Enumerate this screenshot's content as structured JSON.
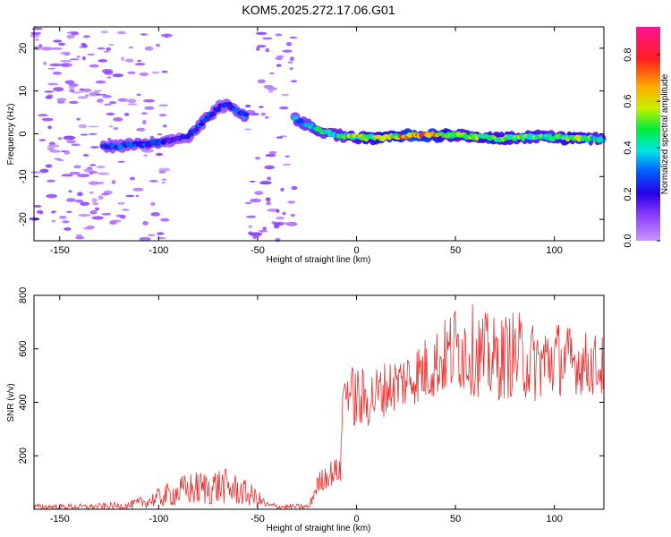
{
  "figure": {
    "title": "KOM5.2025.272.17.06.G01"
  },
  "chart_data": [
    {
      "type": "heatmap",
      "xlabel": "Height of straight line (km)",
      "ylabel": "Frequency (Hz)",
      "xlim": [
        -163,
        125
      ],
      "ylim": [
        -25,
        25
      ],
      "xticks": [
        -150,
        -100,
        -50,
        0,
        50,
        100
      ],
      "yticks": [
        -20,
        -10,
        0,
        10,
        20
      ],
      "colorbar": {
        "label": "Normalized spectral amplitude",
        "range": [
          0.0,
          0.92
        ],
        "ticks": [
          0.0,
          0.2,
          0.4,
          0.6,
          0.8
        ],
        "colormap": "rainbow-white"
      },
      "ridge": {
        "x": [
          -128,
          -120,
          -110,
          -100,
          -92,
          -85,
          -80,
          -75,
          -70,
          -65,
          -60,
          -55,
          -31,
          -25,
          -20,
          -10,
          0,
          10,
          20,
          30,
          40,
          50,
          60,
          70,
          80,
          90,
          100,
          110,
          120,
          125
        ],
        "freq": [
          -3,
          -2.8,
          -2.5,
          -2,
          -1.5,
          -0.5,
          1.5,
          4,
          6,
          7,
          5,
          4,
          3.5,
          2,
          1,
          -0.3,
          -0.8,
          -1,
          -0.6,
          -0.3,
          -0.4,
          -0.2,
          -0.7,
          -1.1,
          -1,
          -0.7,
          -0.8,
          -1.1,
          -1.2,
          -1.2
        ],
        "amplitude": [
          0.25,
          0.3,
          0.28,
          0.3,
          0.2,
          0.22,
          0.28,
          0.3,
          0.22,
          0.25,
          0.3,
          0.35,
          0.35,
          0.4,
          0.45,
          0.45,
          0.55,
          0.6,
          0.7,
          0.85,
          0.75,
          0.55,
          0.55,
          0.6,
          0.55,
          0.55,
          0.5,
          0.65,
          0.5,
          0.45
        ]
      },
      "noise_regions": [
        {
          "x": [
            -163,
            -125
          ],
          "density": "high"
        },
        {
          "x": [
            -125,
            -95
          ],
          "density": "medium"
        },
        {
          "x": [
            -55,
            -31
          ],
          "density": "medium"
        }
      ]
    },
    {
      "type": "line",
      "xlabel": "Height of straight line (km)",
      "ylabel": "SNR (v/v)",
      "xlim": [
        -163,
        125
      ],
      "ylim": [
        0,
        800
      ],
      "xticks": [
        -150,
        -100,
        -50,
        0,
        50,
        100
      ],
      "yticks": [
        200,
        400,
        600,
        800
      ],
      "series": [
        {
          "color": "#e83030",
          "envelope": {
            "x": [
              -163,
              -135,
              -115,
              -105,
              -95,
              -85,
              -75,
              -68,
              -60,
              -52,
              -45,
              -38,
              -24,
              -20,
              -15,
              -8,
              -7,
              -5,
              0,
              5,
              15,
              25,
              35,
              45,
              52,
              60,
              70,
              80,
              90,
              100,
              110,
              125
            ],
            "low": [
              0,
              0,
              0,
              5,
              10,
              15,
              15,
              20,
              15,
              10,
              0,
              0,
              0,
              50,
              80,
              100,
              380,
              380,
              280,
              300,
              350,
              380,
              400,
              430,
              440,
              420,
              400,
              420,
              400,
              420,
              430,
              420
            ],
            "high": [
              20,
              20,
              30,
              60,
              100,
              140,
              150,
              160,
              130,
              90,
              30,
              20,
              20,
              130,
              180,
              200,
              500,
              530,
              550,
              520,
              560,
              600,
              650,
              720,
              800,
              760,
              720,
              750,
              700,
              720,
              680,
              650
            ]
          }
        }
      ]
    }
  ]
}
